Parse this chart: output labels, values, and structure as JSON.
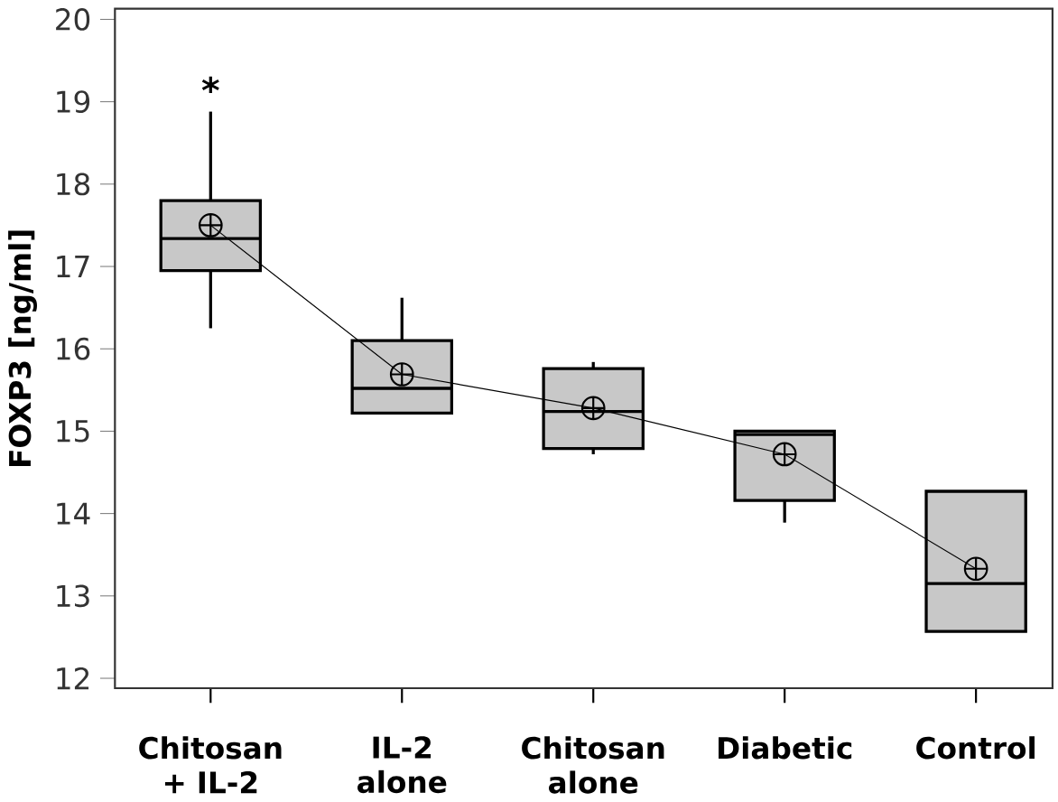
{
  "chart_data": {
    "type": "box",
    "ylabel": "FOXP3 [ng/ml]",
    "categories": [
      "Chitosan + IL-2",
      "IL-2 alone",
      "Chitosan alone",
      "Diabetic",
      "Control"
    ],
    "boxes": [
      {
        "low": 16.25,
        "q1": 16.95,
        "median": 17.34,
        "q3": 17.8,
        "high": 18.88
      },
      {
        "low": 15.22,
        "q1": 15.22,
        "median": 15.52,
        "q3": 16.1,
        "high": 16.62
      },
      {
        "low": 14.72,
        "q1": 14.79,
        "median": 15.24,
        "q3": 15.76,
        "high": 15.84
      },
      {
        "low": 13.89,
        "q1": 14.16,
        "median": 14.96,
        "q3": 15.0,
        "high": 15.0
      },
      {
        "low": 12.57,
        "q1": 12.57,
        "median": 13.15,
        "q3": 14.27,
        "high": 14.27
      }
    ],
    "color": "#c8c8c8",
    "series": [
      {
        "type": "line",
        "color": "#000000",
        "marker": "cross",
        "values": [
          17.5,
          15.69,
          15.28,
          14.72,
          13.33
        ]
      }
    ],
    "ylim": [
      11.88,
      20.13
    ],
    "yticks": [
      12,
      13,
      14,
      15,
      16,
      17,
      18,
      19,
      20
    ],
    "annotations": [
      "*"
    ]
  }
}
